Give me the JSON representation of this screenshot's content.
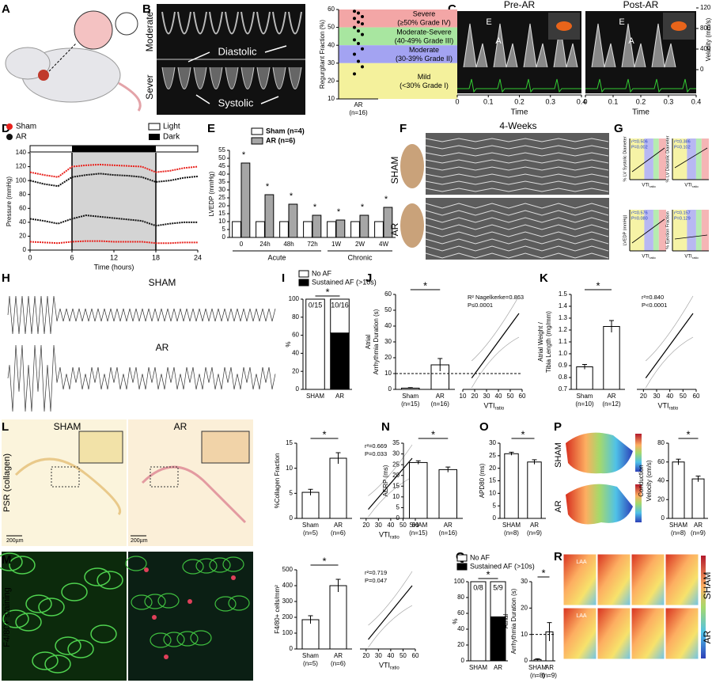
{
  "figure": {
    "panel_labels": [
      "A",
      "B",
      "C",
      "D",
      "E",
      "F",
      "G",
      "H",
      "I",
      "J",
      "K",
      "L",
      "M",
      "N",
      "O",
      "P",
      "Q",
      "R"
    ],
    "B": {
      "rows": [
        "Moderate",
        "Sever"
      ],
      "diastolic": "Diastolic",
      "systolic": "Systolic",
      "chart": {
        "type": "strip",
        "ylabel": "Regurgitant Fraction (%)",
        "ylim": [
          10,
          60
        ],
        "yticks": [
          10,
          20,
          30,
          40,
          50,
          60
        ],
        "categories": [
          "AR"
        ],
        "n_labels": [
          "(n=16)"
        ],
        "values": [
          59,
          58,
          56,
          55,
          53,
          52,
          50,
          48,
          46,
          43,
          41,
          38,
          35,
          31,
          28,
          24
        ],
        "bands": [
          {
            "from": 50,
            "to": 60,
            "color": "#f3a6a6",
            "label": "Severe",
            "sub": "(≥50% Grade IV)"
          },
          {
            "from": 40,
            "to": 50,
            "color": "#a8e6a0",
            "label": "Moderate-Severe",
            "sub": "(40-49% Grade III)"
          },
          {
            "from": 30,
            "to": 40,
            "color": "#a3a3f2",
            "label": "Moderate",
            "sub": "(30-39% Grade II)"
          },
          {
            "from": 10,
            "to": 30,
            "color": "#f4f19c",
            "label": "Mild",
            "sub": "(<30% Grade I)"
          }
        ]
      }
    },
    "C": {
      "titles": [
        "Pre-AR",
        "Post-AR"
      ],
      "wave_labels": [
        "E",
        "A"
      ],
      "xlabel": "Time",
      "xlim": [
        0,
        0.4
      ],
      "xticks": [
        0,
        0.1,
        0.2,
        0.3,
        0.4
      ],
      "ylabel": "Velocity (mm/s)",
      "ylim": [
        0,
        1200
      ],
      "yticks": [
        0,
        400,
        800,
        {
          "value": 1200,
          "label": "120"
        }
      ]
    },
    "D": {
      "type": "line",
      "ylabel": "Pressure (mmHg)",
      "xlabel": "Time (hours)",
      "ylim": [
        0,
        140
      ],
      "yticks": [
        0,
        20,
        40,
        60,
        80,
        100,
        120,
        140
      ],
      "xlim": [
        0,
        24
      ],
      "xticks": [
        0,
        6,
        12,
        18,
        24
      ],
      "light": "Light",
      "dark": "Dark",
      "dark_period": [
        6,
        18
      ],
      "x": [
        0,
        2,
        4,
        6,
        8,
        10,
        12,
        14,
        16,
        18,
        20,
        22,
        24
      ],
      "series": [
        {
          "name": "Sham",
          "color": "#e8221d",
          "systolic": [
            112,
            108,
            105,
            120,
            122,
            123,
            122,
            121,
            120,
            112,
            114,
            118,
            120
          ],
          "diastolic": [
            12,
            11,
            10,
            12,
            13,
            13,
            12,
            12,
            12,
            10,
            10,
            11,
            11
          ]
        },
        {
          "name": "AR",
          "color": "#111111",
          "systolic": [
            100,
            95,
            92,
            105,
            108,
            110,
            108,
            107,
            105,
            98,
            100,
            104,
            106
          ],
          "diastolic": [
            45,
            42,
            38,
            45,
            50,
            48,
            46,
            44,
            42,
            35,
            38,
            40,
            40
          ]
        }
      ]
    },
    "E": {
      "type": "grouped_bar",
      "ylabel": "LVEDP (mmHg)",
      "ylim": [
        0,
        55
      ],
      "yticks": [
        0,
        5,
        10,
        15,
        20,
        25,
        30,
        35,
        40,
        45,
        50,
        55
      ],
      "categories": [
        "0",
        "24h",
        "48h",
        "72h",
        "1W",
        "2W",
        "4W"
      ],
      "groups": [
        "Acute",
        "Chronic"
      ],
      "sig": "*",
      "series": [
        {
          "name": "Sham (n=4)",
          "color": "#ffffff",
          "values": [
            10,
            10,
            10,
            10,
            10,
            10,
            10
          ]
        },
        {
          "name": "AR (n=6)",
          "color": "#a6a6a6",
          "values": [
            47,
            27,
            21,
            14,
            11,
            14,
            19
          ]
        }
      ]
    },
    "F": {
      "title": "4-Weeks",
      "rows": [
        "SHAM",
        "AR"
      ]
    },
    "G": {
      "xlabel": "VTI",
      "xlabel_sub": "ratio",
      "plots": [
        {
          "ylabel": "% LV Systolic Diameter",
          "stats": [
            "r²=0.506",
            "P=0.002"
          ]
        },
        {
          "ylabel": "% LV Diastolic Diameter",
          "stats": [
            "r²=0.386",
            "P=0.102"
          ]
        },
        {
          "ylabel": "LVEDP (mmHg)",
          "stats": [
            "r²=0.576",
            "P=0.080"
          ]
        },
        {
          "ylabel": "% Ejection Fraction",
          "stats": [
            "r²=0.157",
            "P=0.129"
          ]
        }
      ]
    },
    "H": {
      "rows": [
        "SHAM",
        "AR"
      ]
    },
    "I": {
      "type": "stacked_bar",
      "ylabel": "%",
      "ylim": [
        0,
        100
      ],
      "yticks": [
        0,
        20,
        40,
        60,
        80,
        100
      ],
      "categories": [
        "SHAM",
        "AR"
      ],
      "fractions": [
        "0/15",
        "10/16"
      ],
      "sig": "*",
      "series": [
        {
          "name": "No AF",
          "color": "#ffffff",
          "values": [
            100,
            37.5
          ]
        },
        {
          "name": "Sustained AF (>10s)",
          "color": "#000000",
          "values": [
            0,
            62.5
          ]
        }
      ]
    },
    "J": {
      "type": "bar",
      "ylabel": [
        "Atrial",
        "Arrhythmia Duration (s)"
      ],
      "ylim": [
        0,
        60
      ],
      "yticks": [
        0,
        10,
        20,
        30,
        40,
        50,
        60
      ],
      "categories": [
        "Sham",
        "AR"
      ],
      "n_labels": [
        "(n=15)",
        "(n=16)"
      ],
      "values": [
        0.8,
        15.5
      ],
      "errors": [
        0.3,
        4
      ],
      "sig": "*",
      "threshold": 10,
      "vti": {
        "xlim": [
          10,
          60
        ],
        "xticks": [
          10,
          20,
          30,
          40,
          50,
          60
        ],
        "xlabel": "VTI",
        "xlabel_sub": "ratio",
        "stats": [
          "R² Nagelkerke=0.863",
          "P≤0.0001"
        ]
      }
    },
    "K": {
      "type": "bar",
      "ylabel": [
        "Atrial Weight /",
        "Tibia Length (mg/mm)"
      ],
      "ylim": [
        0.7,
        1.5
      ],
      "yticks": [
        0.7,
        0.8,
        0.9,
        {
          "value": 1,
          "label": "1.0"
        },
        1.1,
        1.2,
        1.3,
        1.4,
        1.5
      ],
      "categories": [
        "Sham",
        "AR"
      ],
      "n_labels": [
        "(n=10)",
        "(n=12)"
      ],
      "values": [
        0.89,
        1.23
      ],
      "errors": [
        0.02,
        0.05
      ],
      "sig": "*",
      "vti": {
        "xlim": [
          15,
          60
        ],
        "xticks": [
          20,
          30,
          40,
          50,
          60
        ],
        "xlabel": "VTI",
        "xlabel_sub": "ratio",
        "stats": [
          "r²=0.840",
          "P<0.0001"
        ]
      }
    },
    "L": {
      "rows": [
        "SHAM",
        "AR"
      ],
      "side": "PSR (collagen)",
      "scale": "200µm",
      "chart": {
        "type": "bar",
        "ylabel": "%Collagen Fraction",
        "ylim": [
          0,
          15
        ],
        "yticks": [
          0,
          5,
          10,
          15
        ],
        "categories": [
          "Sham",
          "AR"
        ],
        "n_labels": [
          "(n=5)",
          "(n=6)"
        ],
        "values": [
          5.2,
          12
        ],
        "errors": [
          0.6,
          1.1
        ],
        "sig": "*",
        "vti": {
          "xlim": [
            15,
            60
          ],
          "xticks": [
            20,
            30,
            40,
            50,
            60
          ],
          "xlabel": "VTI",
          "xlabel_sub": "ratio",
          "stats": [
            "r²=0.669",
            "P=0.033"
          ]
        }
      }
    },
    "M": {
      "side": "F4/80+ staining",
      "chart": {
        "type": "bar",
        "ylabel": "F4/80+ cells/mm²",
        "ylim": [
          0,
          500
        ],
        "yticks": [
          0,
          100,
          200,
          300,
          400,
          500
        ],
        "categories": [
          "Sham",
          "AR"
        ],
        "n_labels": [
          "(n=5)",
          "(n=6)"
        ],
        "values": [
          185,
          400
        ],
        "errors": [
          25,
          40
        ],
        "sig": "*",
        "vti": {
          "xlim": [
            15,
            60
          ],
          "xticks": [
            20,
            30,
            40,
            50,
            60
          ],
          "xlabel": "VTI",
          "xlabel_sub": "ratio",
          "stats": [
            "r²=0.719",
            "P=0.047"
          ]
        }
      }
    },
    "N": {
      "type": "bar",
      "ylabel": "AERP (ms)",
      "ylim": [
        0,
        35
      ],
      "yticks": [
        0,
        5,
        10,
        15,
        20,
        25,
        30,
        35
      ],
      "categories": [
        "SHAM",
        "AR"
      ],
      "n_labels": [
        "(n=15)",
        "(n=16)"
      ],
      "values": [
        26,
        22.7
      ],
      "errors": [
        0.8,
        1.2
      ],
      "sig": "*"
    },
    "O": {
      "type": "bar",
      "ylabel": "APD80 (ms)",
      "ylim": [
        0,
        30
      ],
      "yticks": [
        0,
        5,
        10,
        15,
        20,
        25,
        30
      ],
      "categories": [
        "SHAM",
        "AR"
      ],
      "n_labels": [
        "(n=8)",
        "(n=9)"
      ],
      "values": [
        25.8,
        22.5
      ],
      "errors": [
        0.6,
        0.9
      ],
      "sig": "*"
    },
    "P": {
      "rows": [
        "SHAM",
        "AR"
      ],
      "chart": {
        "type": "bar",
        "ylabel": [
          "Conduction",
          "Velocity (cm/s)"
        ],
        "ylim": [
          0,
          80
        ],
        "yticks": [
          0,
          20,
          40,
          60,
          80
        ],
        "categories": [
          "SHAM",
          "AR"
        ],
        "n_labels": [
          "(n=8)",
          "(n=9)"
        ],
        "values": [
          60,
          42
        ],
        "errors": [
          3,
          3
        ],
        "sig": "*"
      }
    },
    "Q": {
      "stacked": {
        "type": "stacked_bar",
        "ylabel": "%",
        "ylim": [
          0,
          100
        ],
        "yticks": [
          0,
          20,
          40,
          60,
          80,
          100
        ],
        "categories": [
          "SHAM",
          "AR"
        ],
        "fractions": [
          "0/8",
          "5/9"
        ],
        "sig": "*",
        "series": [
          {
            "name": "No AF",
            "color": "#ffffff",
            "values": [
              100,
              44.4
            ]
          },
          {
            "name": "Sustained AF (>10s)",
            "color": "#000000",
            "values": [
              0,
              55.6
            ]
          }
        ]
      },
      "duration": {
        "type": "bar",
        "ylabel": [
          "Atrial",
          "Arrhythmia Duration (s)"
        ],
        "ylim": [
          0,
          30
        ],
        "yticks": [
          0,
          10,
          20,
          30
        ],
        "categories": [
          "SHAM",
          "AR"
        ],
        "n_labels": [
          "(n=8)",
          "(n=9)"
        ],
        "values": [
          0.5,
          11
        ],
        "errors": [
          0.3,
          3.5
        ],
        "sig": "*",
        "threshold": 10
      }
    },
    "R": {
      "rows": [
        "SHAM",
        "AR"
      ],
      "region": "LAA"
    }
  }
}
